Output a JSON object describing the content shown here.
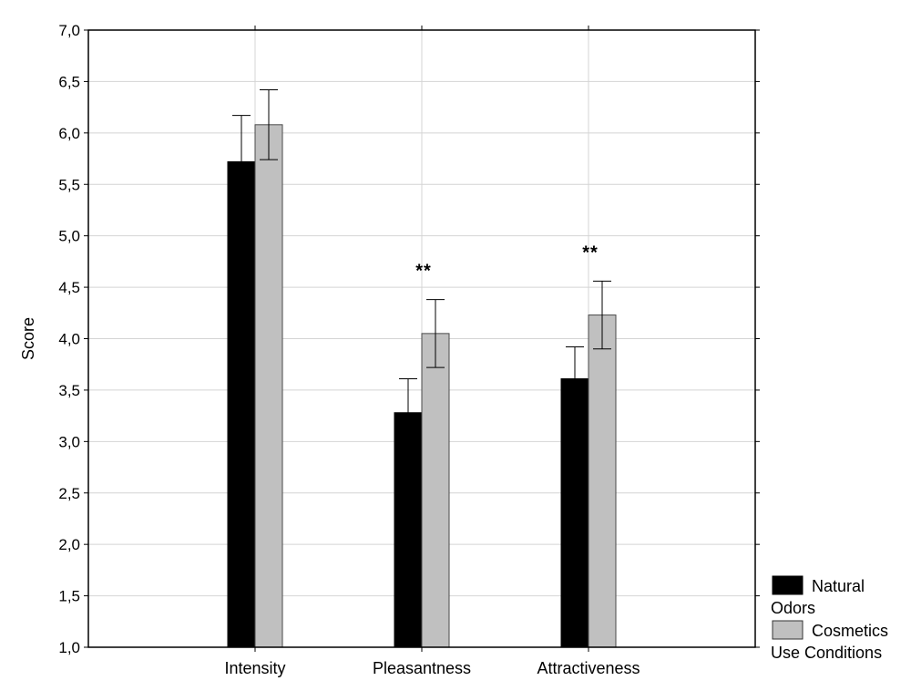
{
  "chart_data": {
    "type": "bar",
    "title": "",
    "xlabel": "",
    "ylabel": "Score",
    "ylim": [
      1.0,
      7.0
    ],
    "yticks": [
      "1,0",
      "1,5",
      "2,0",
      "2,5",
      "3,0",
      "3,5",
      "4,0",
      "4,5",
      "5,0",
      "5,5",
      "6,0",
      "6,5",
      "7,0"
    ],
    "grid": true,
    "categories": [
      "Intensity",
      "Pleasantness",
      "Attractiveness"
    ],
    "series": [
      {
        "name": "Natural Odors",
        "color": "#000000",
        "values": [
          5.72,
          3.28,
          3.61
        ],
        "error_low": [
          5.27,
          2.95,
          3.3
        ],
        "error_high": [
          6.17,
          3.61,
          3.92
        ]
      },
      {
        "name": "Cosmetics Use Conditions",
        "color": "#c0c0c0",
        "values": [
          6.08,
          4.05,
          4.23
        ],
        "error_low": [
          5.74,
          3.72,
          3.9
        ],
        "error_high": [
          6.42,
          4.38,
          4.56
        ]
      }
    ],
    "annotations": [
      "",
      "**",
      "**"
    ],
    "legend": {
      "position": "bottom-right",
      "lines": [
        "Natural",
        "Odors",
        "Cosmetics",
        "Use Conditions"
      ]
    }
  }
}
